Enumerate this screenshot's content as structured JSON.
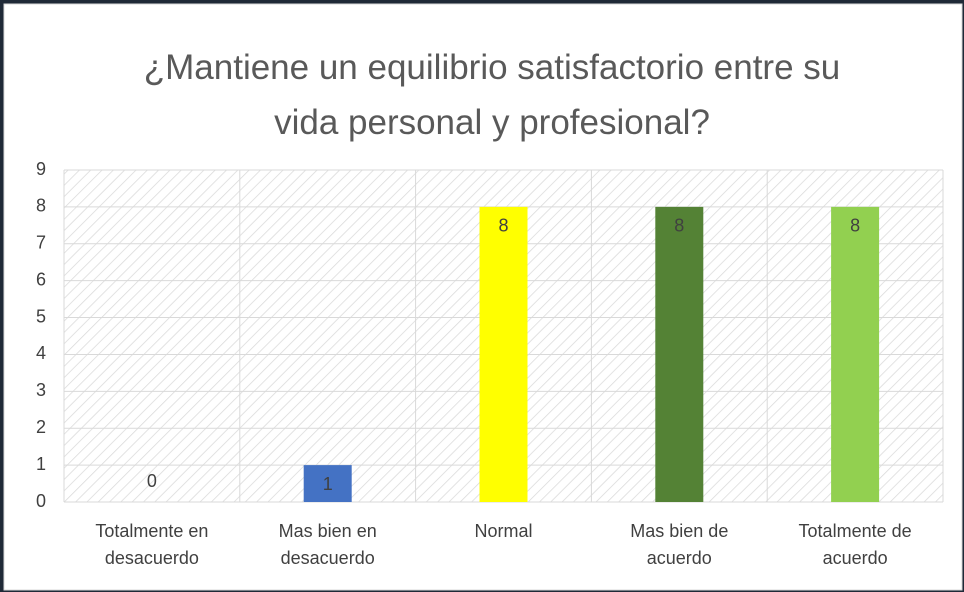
{
  "chart_data": {
    "type": "bar",
    "title": "¿Mantiene un equilibrio satisfactorio entre su vida personal y profesional?",
    "categories": [
      "Totalmente en desacuerdo",
      "Mas bien en desacuerdo",
      "Normal",
      "Mas bien de acuerdo",
      "Totalmente de acuerdo"
    ],
    "values": [
      0,
      1,
      8,
      8,
      8
    ],
    "colors": [
      "#4472c4",
      "#4472c4",
      "#ffff00",
      "#548235",
      "#92d050"
    ],
    "ylim": [
      0,
      9
    ],
    "yticks": [
      0,
      1,
      2,
      3,
      4,
      5,
      6,
      7,
      8,
      9
    ],
    "grid": true
  }
}
